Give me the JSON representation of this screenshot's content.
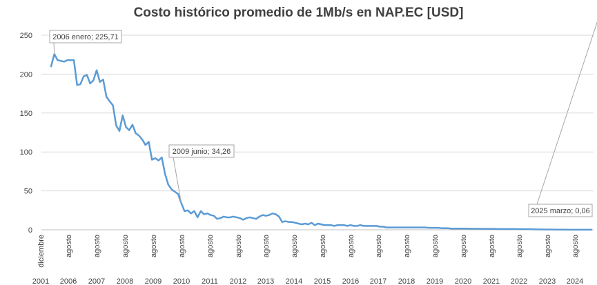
{
  "chart_data": {
    "type": "line",
    "title": "Costo histórico promedio de 1Mb/s en NAP.EC [USD]",
    "xlabel": "",
    "ylabel": "",
    "ylim": [
      0,
      250
    ],
    "y_ticks": [
      0,
      50,
      100,
      150,
      200,
      250
    ],
    "grid": true,
    "legend": "none",
    "colors": {
      "line": "#5b9bd5",
      "grid": "#d9d9d9",
      "axis_text": "#404040",
      "callout_border": "#a6a6a6"
    },
    "x_year_labels": [
      "2001",
      "2006",
      "2007",
      "2008",
      "2009",
      "2010",
      "2011",
      "2012",
      "2013",
      "2014",
      "2015",
      "2016",
      "2017",
      "2018",
      "2019",
      "2020",
      "2021",
      "2022",
      "2023",
      "2024"
    ],
    "x_month_labels": [
      "diciembre",
      "agosto",
      "agosto",
      "agosto",
      "agosto",
      "agosto",
      "agosto",
      "agosto",
      "agosto",
      "agosto",
      "agosto",
      "agosto",
      "agosto",
      "agosto",
      "agosto",
      "agosto",
      "agosto",
      "agosto",
      "agosto",
      "agosto"
    ],
    "series": [
      {
        "values": [
          210,
          225.71,
          218,
          217,
          216,
          218,
          218,
          218,
          186,
          187,
          197,
          199,
          188,
          192,
          205,
          190,
          193,
          171,
          165,
          160,
          134,
          127,
          147,
          132,
          128,
          135,
          124,
          121,
          116,
          109,
          113,
          90,
          92,
          89,
          93,
          72,
          58,
          52,
          49,
          46,
          34.26,
          24,
          25,
          21,
          24,
          16,
          24,
          20,
          21,
          19,
          18,
          14,
          15,
          17,
          16,
          16,
          17,
          16,
          15,
          13,
          15,
          16,
          15,
          14,
          17,
          19,
          18,
          19,
          21,
          20,
          17,
          10,
          11,
          10,
          10,
          9,
          8,
          7,
          8,
          7,
          9,
          6,
          8,
          7,
          6,
          6,
          6,
          5,
          6,
          6,
          6,
          5,
          6,
          5,
          5,
          6,
          5,
          5,
          5,
          5,
          5,
          4,
          4,
          3,
          3,
          3,
          3,
          3,
          3,
          3,
          3,
          3,
          3,
          3,
          3,
          3,
          2.5,
          2.5,
          2.5,
          2.5,
          2,
          2,
          2,
          1.5,
          1.5,
          1.5,
          1.5,
          1.5,
          1.5,
          1.3,
          1.3,
          1.3,
          1.3,
          1.2,
          1.2,
          1.2,
          1.2,
          1,
          1,
          1,
          1,
          1,
          1,
          0.9,
          0.9,
          0.9,
          0.8,
          0.8,
          0.7,
          0.6,
          0.5,
          0.4,
          0.35,
          0.3,
          0.28,
          0.25,
          0.22,
          0.2,
          0.18,
          0.16,
          0.14,
          0.12,
          0.1,
          0.09,
          0.08,
          0.07,
          0.06
        ]
      }
    ],
    "annotations": [
      {
        "text": "2006 enero; 225,71",
        "point_index": 1
      },
      {
        "text": "2009 junio; 34,26",
        "point_index": 40
      },
      {
        "text": "2025 marzo; 0,06",
        "point_index": 170
      }
    ]
  }
}
